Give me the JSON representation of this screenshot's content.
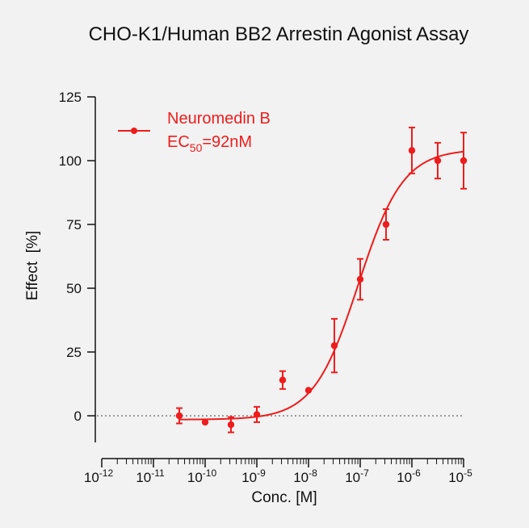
{
  "chart_data": {
    "type": "scatter",
    "title": "CHO-K1/Human BB2 Arrestin Agonist Assay",
    "xlabel": "Conc. [M]",
    "ylabel": "Effect  [%]",
    "x_scale": "log",
    "xlim": [
      1e-12,
      1e-05
    ],
    "ylim": [
      -25,
      125
    ],
    "x_ticks": [
      {
        "value": 1e-12,
        "base": "10",
        "exp": "-12"
      },
      {
        "value": 1e-11,
        "base": "10",
        "exp": "-11"
      },
      {
        "value": 1e-10,
        "base": "10",
        "exp": "-10"
      },
      {
        "value": 1e-09,
        "base": "10",
        "exp": "-9"
      },
      {
        "value": 1e-08,
        "base": "10",
        "exp": "-8"
      },
      {
        "value": 1e-07,
        "base": "10",
        "exp": "-7"
      },
      {
        "value": 1e-06,
        "base": "10",
        "exp": "-6"
      },
      {
        "value": 1e-05,
        "base": "10",
        "exp": "-5"
      }
    ],
    "y_ticks": [
      0,
      25,
      50,
      75,
      100,
      125
    ],
    "reference_line": {
      "y": 0,
      "style": "dotted"
    },
    "legend": {
      "position": "top-left",
      "series_label": "Neuromedin B",
      "ec50_prefix": "EC",
      "ec50_sub": "50",
      "ec50_value": "=92nM"
    },
    "series": [
      {
        "name": "Neuromedin B",
        "color": "#ee1c1c",
        "points": [
          {
            "x": 3.16e-11,
            "y": 0,
            "err": 3
          },
          {
            "x": 1e-10,
            "y": -2.5,
            "err": 0
          },
          {
            "x": 3.16e-10,
            "y": -3.5,
            "err": 3
          },
          {
            "x": 1e-09,
            "y": 0.5,
            "err": 3
          },
          {
            "x": 3.16e-09,
            "y": 14,
            "err": 3.5
          },
          {
            "x": 1e-08,
            "y": 10,
            "err": 0
          },
          {
            "x": 3.16e-08,
            "y": 27.5,
            "err": 10.5
          },
          {
            "x": 1e-07,
            "y": 53.5,
            "err": 8
          },
          {
            "x": 3.16e-07,
            "y": 75,
            "err": 6
          },
          {
            "x": 1e-06,
            "y": 104,
            "err": 9
          },
          {
            "x": 3.16e-06,
            "y": 100,
            "err": 7
          },
          {
            "x": 1e-05,
            "y": 100,
            "err": 11
          }
        ],
        "fit": {
          "model": "four-parameter logistic",
          "bottom": -1.5,
          "top": 104.5,
          "ec50": 9.2e-08,
          "hill": 1.0
        }
      }
    ]
  }
}
